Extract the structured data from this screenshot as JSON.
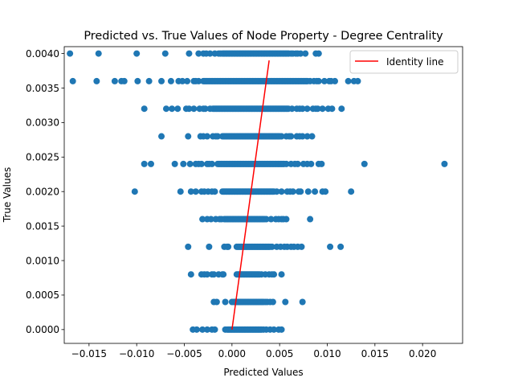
{
  "chart_data": {
    "type": "scatter",
    "title": "Predicted vs. True Values of Node Property - Degree Centrality",
    "xlabel": "Predicted Values",
    "ylabel": "True Values",
    "xlim": [
      -0.0176,
      0.0242
    ],
    "ylim": [
      -0.0002,
      0.0041
    ],
    "xticks": [
      -0.015,
      -0.01,
      -0.005,
      0.0,
      0.005,
      0.01,
      0.015,
      0.02
    ],
    "xtick_labels": [
      "−0.015",
      "−0.010",
      "−0.005",
      "0.000",
      "0.005",
      "0.010",
      "0.015",
      "0.020"
    ],
    "yticks": [
      0.0,
      0.0005,
      0.001,
      0.0015,
      0.002,
      0.0025,
      0.003,
      0.0035,
      0.004
    ],
    "ytick_labels": [
      "0.0000",
      "0.0005",
      "0.0010",
      "0.0015",
      "0.0020",
      "0.0025",
      "0.0030",
      "0.0035",
      "0.0040"
    ],
    "grid": false,
    "legend": {
      "position": "upper right",
      "entries": [
        "Identity line"
      ]
    },
    "colors": {
      "points": "#1f77b4",
      "identity": "#ff0000"
    },
    "identity_line": {
      "x": [
        0.0,
        0.0039
      ],
      "y": [
        0.0,
        0.0039
      ]
    },
    "rows": [
      {
        "y": 0.0,
        "dense": [
          -0.0005,
          0.0032
        ],
        "sparse": [
          -0.0021,
          -0.0018,
          -0.0007,
          0.0033,
          0.004,
          0.0049,
          0.0052,
          -0.0041,
          -0.0037,
          -0.0031,
          -0.0026,
          0.0044,
          0.0036
        ]
      },
      {
        "y": 0.0004,
        "dense": [
          0.0002,
          0.0032
        ],
        "sparse": [
          -0.0019,
          -0.0016,
          -0.0007,
          0.0033,
          0.0037,
          0.004,
          0.0043,
          0.0056,
          0.0074,
          0.0,
          0.0009,
          0.0035
        ]
      },
      {
        "y": 0.0008,
        "dense": [
          0.0005,
          0.003
        ],
        "sparse": [
          -0.0043,
          -0.0029,
          -0.0026,
          -0.0021,
          -0.0014,
          -0.001,
          0.0031,
          0.0035,
          0.0039,
          0.0044,
          0.0052,
          -0.0032,
          -0.0019,
          -0.0009,
          0.0042
        ]
      },
      {
        "y": 0.0012,
        "dense": [
          0.0005,
          0.004
        ],
        "sparse": [
          -0.0024,
          -0.0046,
          -0.0008,
          -0.0005,
          0.0042,
          0.0047,
          0.0051,
          0.0058,
          0.0062,
          0.0069,
          0.0073,
          0.0103,
          0.0114,
          -0.0004,
          0.0055,
          0.0065
        ]
      },
      {
        "y": 0.0016,
        "dense": [
          -0.0008,
          0.0035
        ],
        "sparse": [
          -0.0031,
          -0.0026,
          -0.0017,
          -0.0013,
          0.0036,
          0.0041,
          0.0046,
          0.0052,
          0.0057,
          0.0082,
          -0.0022,
          -0.0011,
          0.0049,
          0.0054
        ]
      },
      {
        "y": 0.002,
        "dense": [
          -0.001,
          0.0045
        ],
        "sparse": [
          -0.0102,
          -0.0054,
          -0.0043,
          -0.0038,
          -0.0032,
          -0.0025,
          -0.0018,
          0.0047,
          0.0052,
          0.0058,
          0.0064,
          0.0072,
          0.008,
          0.0087,
          0.0095,
          0.0098,
          0.0125,
          -0.0029,
          -0.0021,
          0.0061,
          0.007
        ]
      },
      {
        "y": 0.0024,
        "dense": [
          -0.0015,
          0.0055
        ],
        "sparse": [
          -0.0092,
          -0.0085,
          -0.006,
          -0.0051,
          -0.0044,
          -0.0038,
          -0.0032,
          -0.0026,
          -0.0021,
          0.0057,
          0.0062,
          0.0069,
          0.0075,
          0.0083,
          0.0091,
          0.0094,
          0.0139,
          0.0223,
          -0.0035,
          -0.0024,
          0.0066,
          0.0079
        ]
      },
      {
        "y": 0.0028,
        "dense": [
          -0.001,
          0.005
        ],
        "sparse": [
          -0.0074,
          -0.0046,
          -0.0033,
          -0.0026,
          -0.002,
          -0.0015,
          0.0052,
          0.0057,
          0.0062,
          0.0068,
          0.0074,
          0.0079,
          0.0084,
          -0.003,
          -0.0017,
          0.006,
          0.0071
        ]
      },
      {
        "y": 0.0032,
        "dense": [
          -0.002,
          0.006
        ],
        "sparse": [
          -0.0092,
          -0.0069,
          -0.0063,
          -0.0057,
          -0.0048,
          -0.004,
          -0.0034,
          -0.0028,
          -0.0023,
          0.0063,
          0.0068,
          0.0074,
          0.0079,
          0.0085,
          0.009,
          0.0095,
          0.0101,
          0.0105,
          0.0115,
          -0.0045,
          -0.003,
          0.0071,
          0.0088
        ]
      },
      {
        "y": 0.0036,
        "dense": [
          -0.003,
          0.008
        ],
        "sparse": [
          -0.0167,
          -0.0142,
          -0.0123,
          -0.0116,
          -0.0113,
          -0.0099,
          -0.0087,
          -0.0074,
          -0.0064,
          -0.0056,
          -0.0047,
          -0.004,
          -0.0035,
          0.0082,
          0.0086,
          0.0091,
          0.0097,
          0.0102,
          0.0108,
          0.0122,
          0.0128,
          0.0132,
          -0.0052,
          -0.0038,
          0.0089,
          0.0104
        ]
      },
      {
        "y": 0.004,
        "dense": [
          -0.001,
          0.006
        ],
        "sparse": [
          -0.017,
          -0.014,
          -0.01,
          -0.007,
          -0.0045,
          -0.0035,
          -0.003,
          -0.0023,
          -0.0018,
          -0.0014,
          0.0062,
          0.0067,
          0.0072,
          0.0077,
          0.0088,
          0.0091,
          -0.0027,
          -0.0012,
          0.0064,
          0.0069
        ]
      }
    ]
  }
}
